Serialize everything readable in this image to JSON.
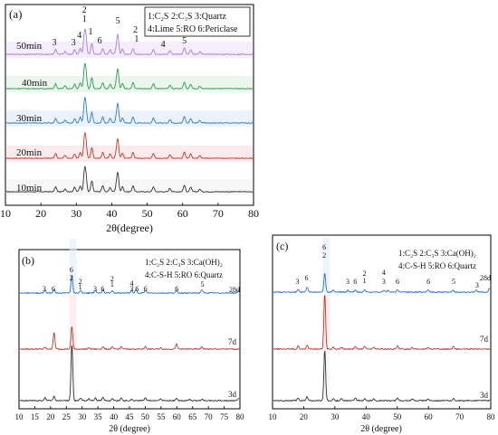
{
  "chart_data": [
    {
      "type": "line",
      "panel_label": "(a)",
      "xlabel": "2θ(degree)",
      "ylabel": "",
      "xlim": [
        10,
        80
      ],
      "xticks": [
        10,
        20,
        30,
        40,
        50,
        60,
        70,
        80
      ],
      "legend_lines": [
        "1:C₂S 2:C₃S 3:Quartz",
        "4:Lime 5:RO 6:Periclase"
      ],
      "series": [
        {
          "name": "10min",
          "color": "#333333"
        },
        {
          "name": "20min",
          "color": "#c0392b"
        },
        {
          "name": "30min",
          "color": "#2e7cc4"
        },
        {
          "name": "40min",
          "color": "#2e9a4c"
        },
        {
          "name": "50min",
          "color": "#b07ad6"
        }
      ],
      "peaks": [
        {
          "x": 24.0,
          "h": 10
        },
        {
          "x": 26.7,
          "h": 6
        },
        {
          "x": 29.4,
          "h": 9
        },
        {
          "x": 31.0,
          "h": 12
        },
        {
          "x": 32.2,
          "h": 36
        },
        {
          "x": 32.6,
          "h": 30
        },
        {
          "x": 34.3,
          "h": 22
        },
        {
          "x": 37.4,
          "h": 12
        },
        {
          "x": 39.5,
          "h": 9
        },
        {
          "x": 41.3,
          "h": 12
        },
        {
          "x": 41.7,
          "h": 35
        },
        {
          "x": 43.0,
          "h": 10
        },
        {
          "x": 46.0,
          "h": 12
        },
        {
          "x": 51.8,
          "h": 10
        },
        {
          "x": 56.5,
          "h": 7
        },
        {
          "x": 60.6,
          "h": 13
        },
        {
          "x": 62.4,
          "h": 9
        },
        {
          "x": 65.0,
          "h": 5
        }
      ],
      "annotations": [
        {
          "x": 23.8,
          "text": "3"
        },
        {
          "x": 29.2,
          "text": "3"
        },
        {
          "x": 30.9,
          "text": "4"
        },
        {
          "x": 32.3,
          "text": "2"
        },
        {
          "x": 32.3,
          "text": "1"
        },
        {
          "x": 34.0,
          "text": "1"
        },
        {
          "x": 36.6,
          "text": "6"
        },
        {
          "x": 41.7,
          "text": "5"
        },
        {
          "x": 46.7,
          "text": "2"
        },
        {
          "x": 47.0,
          "text": "1"
        },
        {
          "x": 54.5,
          "text": "4"
        },
        {
          "x": 60.5,
          "text": "5"
        }
      ]
    },
    {
      "type": "line",
      "panel_label": "(b)",
      "xlabel": "2θ (degree)",
      "ylabel": "",
      "xlim": [
        10,
        80
      ],
      "xticks": [
        10,
        15,
        20,
        25,
        30,
        35,
        40,
        45,
        50,
        55,
        60,
        65,
        70,
        75,
        80
      ],
      "legend_lines": [
        "1:C₂S 2:C₃S 3:Ca(OH)₂",
        "4:C-S-H 5:RO 6:Quartz"
      ],
      "series": [
        {
          "name": "3d",
          "color": "#333333",
          "peaks": [
            {
              "x": 18.0,
              "h": 5
            },
            {
              "x": 20.9,
              "h": 7
            },
            {
              "x": 26.6,
              "h": 90
            },
            {
              "x": 29.4,
              "h": 4
            },
            {
              "x": 32.0,
              "h": 3
            },
            {
              "x": 34.1,
              "h": 4
            },
            {
              "x": 36.5,
              "h": 5
            },
            {
              "x": 39.5,
              "h": 3
            },
            {
              "x": 42.4,
              "h": 4
            },
            {
              "x": 45.8,
              "h": 2
            },
            {
              "x": 50.1,
              "h": 5
            },
            {
              "x": 54.9,
              "h": 3
            },
            {
              "x": 60.0,
              "h": 3
            },
            {
              "x": 64.1,
              "h": 2
            },
            {
              "x": 68.2,
              "h": 2
            },
            {
              "x": 79.9,
              "h": 4
            }
          ]
        },
        {
          "name": "7d",
          "color": "#c0392b",
          "peaks": [
            {
              "x": 18.0,
              "h": 3
            },
            {
              "x": 20.9,
              "h": 26
            },
            {
              "x": 26.6,
              "h": 36
            },
            {
              "x": 32.0,
              "h": 2
            },
            {
              "x": 36.5,
              "h": 4
            },
            {
              "x": 39.5,
              "h": 3
            },
            {
              "x": 42.4,
              "h": 4
            },
            {
              "x": 50.1,
              "h": 4
            },
            {
              "x": 54.9,
              "h": 2
            },
            {
              "x": 60.0,
              "h": 8
            },
            {
              "x": 68.1,
              "h": 4
            }
          ]
        },
        {
          "name": "28d",
          "color": "#2e6fd6",
          "peaks": [
            {
              "x": 18.0,
              "h": 4
            },
            {
              "x": 20.9,
              "h": 6
            },
            {
              "x": 26.6,
              "h": 28
            },
            {
              "x": 29.4,
              "h": 4
            },
            {
              "x": 34.1,
              "h": 4
            },
            {
              "x": 36.5,
              "h": 5
            },
            {
              "x": 39.5,
              "h": 4
            },
            {
              "x": 45.7,
              "h": 4
            },
            {
              "x": 47.1,
              "h": 5
            },
            {
              "x": 50.1,
              "h": 4
            },
            {
              "x": 60.0,
              "h": 4
            },
            {
              "x": 68.1,
              "h": 5
            },
            {
              "x": 79.9,
              "h": 4
            }
          ]
        }
      ],
      "annotations": [
        {
          "x": 18.0,
          "text": "3"
        },
        {
          "x": 20.9,
          "text": "6"
        },
        {
          "x": 26.6,
          "text": "6"
        },
        {
          "x": 26.6,
          "text": "2"
        },
        {
          "x": 29.4,
          "text": "2"
        },
        {
          "x": 29.4,
          "text": "1"
        },
        {
          "x": 34.1,
          "text": "3"
        },
        {
          "x": 36.5,
          "text": "6"
        },
        {
          "x": 39.5,
          "text": "2"
        },
        {
          "x": 39.5,
          "text": "1"
        },
        {
          "x": 45.7,
          "text": "4"
        },
        {
          "x": 45.7,
          "text": "3"
        },
        {
          "x": 47.4,
          "text": "6"
        },
        {
          "x": 50.1,
          "text": "6"
        },
        {
          "x": 60.0,
          "text": "6"
        },
        {
          "x": 68.1,
          "text": "5"
        },
        {
          "x": 79.9,
          "text": "28d"
        }
      ]
    },
    {
      "type": "line",
      "panel_label": "(c)",
      "xlabel": "2θ (degree)",
      "ylabel": "",
      "xlim": [
        10,
        80
      ],
      "xticks": [
        10,
        20,
        30,
        40,
        50,
        60,
        70,
        80
      ],
      "legend_lines": [
        "1:C₂S 2:C₃S 3:Ca(OH)₂",
        "4:C-S-H 5:RO 6:Quartz"
      ],
      "series": [
        {
          "name": "3d",
          "color": "#333333",
          "peaks": [
            {
              "x": 18.0,
              "h": 4
            },
            {
              "x": 20.9,
              "h": 6
            },
            {
              "x": 26.6,
              "h": 80
            },
            {
              "x": 29.4,
              "h": 4
            },
            {
              "x": 32.0,
              "h": 3
            },
            {
              "x": 36.5,
              "h": 4
            },
            {
              "x": 39.5,
              "h": 3
            },
            {
              "x": 42.4,
              "h": 3
            },
            {
              "x": 50.1,
              "h": 4
            },
            {
              "x": 54.9,
              "h": 3
            },
            {
              "x": 60.0,
              "h": 3
            },
            {
              "x": 68.2,
              "h": 3
            }
          ]
        },
        {
          "name": "7d",
          "color": "#c0392b",
          "peaks": [
            {
              "x": 18.0,
              "h": 5
            },
            {
              "x": 20.9,
              "h": 6
            },
            {
              "x": 26.6,
              "h": 88
            },
            {
              "x": 29.4,
              "h": 3
            },
            {
              "x": 32.0,
              "h": 3
            },
            {
              "x": 36.5,
              "h": 4
            },
            {
              "x": 39.5,
              "h": 5
            },
            {
              "x": 42.4,
              "h": 3
            },
            {
              "x": 50.1,
              "h": 5
            },
            {
              "x": 54.9,
              "h": 3
            },
            {
              "x": 60.0,
              "h": 3
            },
            {
              "x": 68.2,
              "h": 4
            }
          ]
        },
        {
          "name": "28d",
          "color": "#2e6fd6",
          "peaks": [
            {
              "x": 18.0,
              "h": 4
            },
            {
              "x": 20.9,
              "h": 8
            },
            {
              "x": 26.6,
              "h": 30
            },
            {
              "x": 29.4,
              "h": 3
            },
            {
              "x": 34.1,
              "h": 3
            },
            {
              "x": 36.5,
              "h": 3
            },
            {
              "x": 39.5,
              "h": 4
            },
            {
              "x": 45.7,
              "h": 3
            },
            {
              "x": 47.1,
              "h": 3
            },
            {
              "x": 50.1,
              "h": 4
            },
            {
              "x": 60.0,
              "h": 4
            },
            {
              "x": 68.1,
              "h": 3
            },
            {
              "x": 75.6,
              "h": 3
            },
            {
              "x": 79.9,
              "h": 6
            }
          ]
        }
      ],
      "annotations": [
        {
          "x": 18.0,
          "text": "3"
        },
        {
          "x": 20.9,
          "text": "6"
        },
        {
          "x": 26.6,
          "text": "6"
        },
        {
          "x": 26.6,
          "text": "2"
        },
        {
          "x": 34.1,
          "text": "3"
        },
        {
          "x": 36.5,
          "text": "6"
        },
        {
          "x": 39.5,
          "text": "2"
        },
        {
          "x": 39.5,
          "text": "1"
        },
        {
          "x": 45.7,
          "text": "4"
        },
        {
          "x": 45.7,
          "text": "3"
        },
        {
          "x": 50.1,
          "text": "6"
        },
        {
          "x": 60.0,
          "text": "6"
        },
        {
          "x": 68.1,
          "text": "5"
        },
        {
          "x": 75.6,
          "text": "3"
        },
        {
          "x": 79.9,
          "text": "28d"
        }
      ]
    }
  ]
}
